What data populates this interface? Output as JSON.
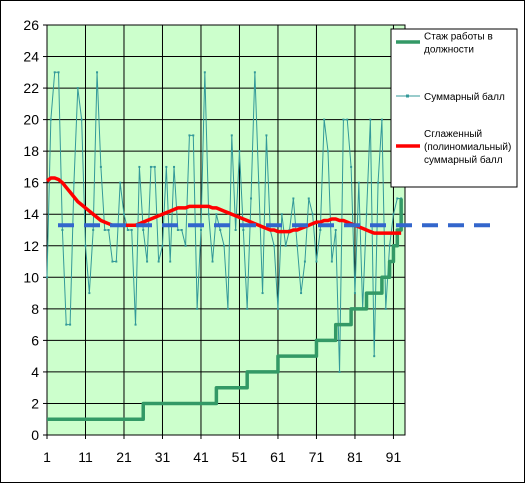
{
  "chart_data": {
    "type": "line",
    "title": "",
    "xlabel": "",
    "ylabel": "",
    "xlim": [
      1,
      94
    ],
    "ylim": [
      0,
      26
    ],
    "x_ticks": [
      1,
      11,
      21,
      31,
      41,
      51,
      61,
      71,
      81,
      91
    ],
    "y_ticks": [
      0,
      2,
      4,
      6,
      8,
      10,
      12,
      14,
      16,
      18,
      20,
      22,
      24,
      26
    ],
    "grid": true,
    "plot_background": "#ccffcc",
    "legend_position": "right",
    "reference_line": {
      "y": 13.3,
      "color": "#3366cc",
      "style": "dashed"
    },
    "x": [
      1,
      2,
      3,
      4,
      5,
      6,
      7,
      8,
      9,
      10,
      11,
      12,
      13,
      14,
      15,
      16,
      17,
      18,
      19,
      20,
      21,
      22,
      23,
      24,
      25,
      26,
      27,
      28,
      29,
      30,
      31,
      32,
      33,
      34,
      35,
      36,
      37,
      38,
      39,
      40,
      41,
      42,
      43,
      44,
      45,
      46,
      47,
      48,
      49,
      50,
      51,
      52,
      53,
      54,
      55,
      56,
      57,
      58,
      59,
      60,
      61,
      62,
      63,
      64,
      65,
      66,
      67,
      68,
      69,
      70,
      71,
      72,
      73,
      74,
      75,
      76,
      77,
      78,
      79,
      80,
      81,
      82,
      83,
      84,
      85,
      86,
      87,
      88,
      89,
      90,
      91,
      92,
      93
    ],
    "series": [
      {
        "name": "Стаж работы в должности",
        "color": "#339966",
        "values": [
          1,
          1,
          1,
          1,
          1,
          1,
          1,
          1,
          1,
          1,
          1,
          1,
          1,
          1,
          1,
          1,
          1,
          1,
          1,
          1,
          1,
          1,
          1,
          1,
          1,
          2,
          2,
          2,
          2,
          2,
          2,
          2,
          2,
          2,
          2,
          2,
          2,
          2,
          2,
          2,
          2,
          2,
          2,
          2,
          3,
          3,
          3,
          3,
          3,
          3,
          3,
          3,
          4,
          4,
          4,
          4,
          4,
          4,
          4,
          4,
          5,
          5,
          5,
          5,
          5,
          5,
          5,
          5,
          5,
          5,
          6,
          6,
          6,
          6,
          6,
          7,
          7,
          7,
          7,
          8,
          8,
          8,
          8,
          9,
          9,
          9,
          9,
          10,
          10,
          11,
          12,
          13,
          15
        ]
      },
      {
        "name": "Суммарный балл",
        "color": "#339999",
        "values": [
          10,
          20,
          23,
          23,
          13,
          7,
          7,
          16,
          22,
          20,
          12,
          9,
          13,
          23,
          17,
          13,
          13,
          11,
          11,
          16,
          14,
          13,
          13,
          7,
          17,
          13,
          11,
          17,
          17,
          11,
          12,
          17,
          11,
          17,
          13,
          13,
          12,
          19,
          19,
          8,
          13,
          23,
          14,
          11,
          14,
          13,
          12,
          8,
          19,
          13,
          18,
          13,
          8,
          15,
          23,
          16,
          9,
          19,
          13,
          12,
          8,
          14,
          12,
          13,
          15,
          12,
          9,
          11,
          15,
          14,
          11,
          13,
          20,
          18,
          11,
          13,
          4,
          20,
          20,
          17,
          9,
          16,
          8,
          14,
          20,
          5,
          16,
          20,
          8,
          12,
          14,
          15,
          15
        ]
      },
      {
        "name": "Сглаженный (полиномиальный) суммарный балл",
        "color": "#ff0000",
        "values": [
          16.1,
          16.3,
          16.3,
          16.2,
          16.0,
          15.7,
          15.4,
          15.1,
          14.8,
          14.6,
          14.4,
          14.2,
          14.0,
          13.8,
          13.6,
          13.5,
          13.4,
          13.3,
          13.3,
          13.3,
          13.3,
          13.3,
          13.3,
          13.3,
          13.4,
          13.5,
          13.6,
          13.7,
          13.8,
          13.9,
          14.0,
          14.1,
          14.2,
          14.3,
          14.4,
          14.4,
          14.4,
          14.5,
          14.5,
          14.5,
          14.5,
          14.5,
          14.5,
          14.4,
          14.4,
          14.3,
          14.2,
          14.1,
          14.0,
          13.9,
          13.8,
          13.7,
          13.6,
          13.5,
          13.4,
          13.3,
          13.2,
          13.1,
          13.0,
          13.0,
          12.9,
          12.9,
          12.9,
          12.9,
          13.0,
          13.0,
          13.1,
          13.2,
          13.3,
          13.4,
          13.5,
          13.5,
          13.6,
          13.6,
          13.7,
          13.7,
          13.6,
          13.6,
          13.5,
          13.4,
          13.3,
          13.2,
          13.1,
          13.0,
          12.9,
          12.8,
          12.8,
          12.8,
          12.8,
          12.8,
          12.8,
          12.8,
          12.8
        ]
      }
    ]
  }
}
